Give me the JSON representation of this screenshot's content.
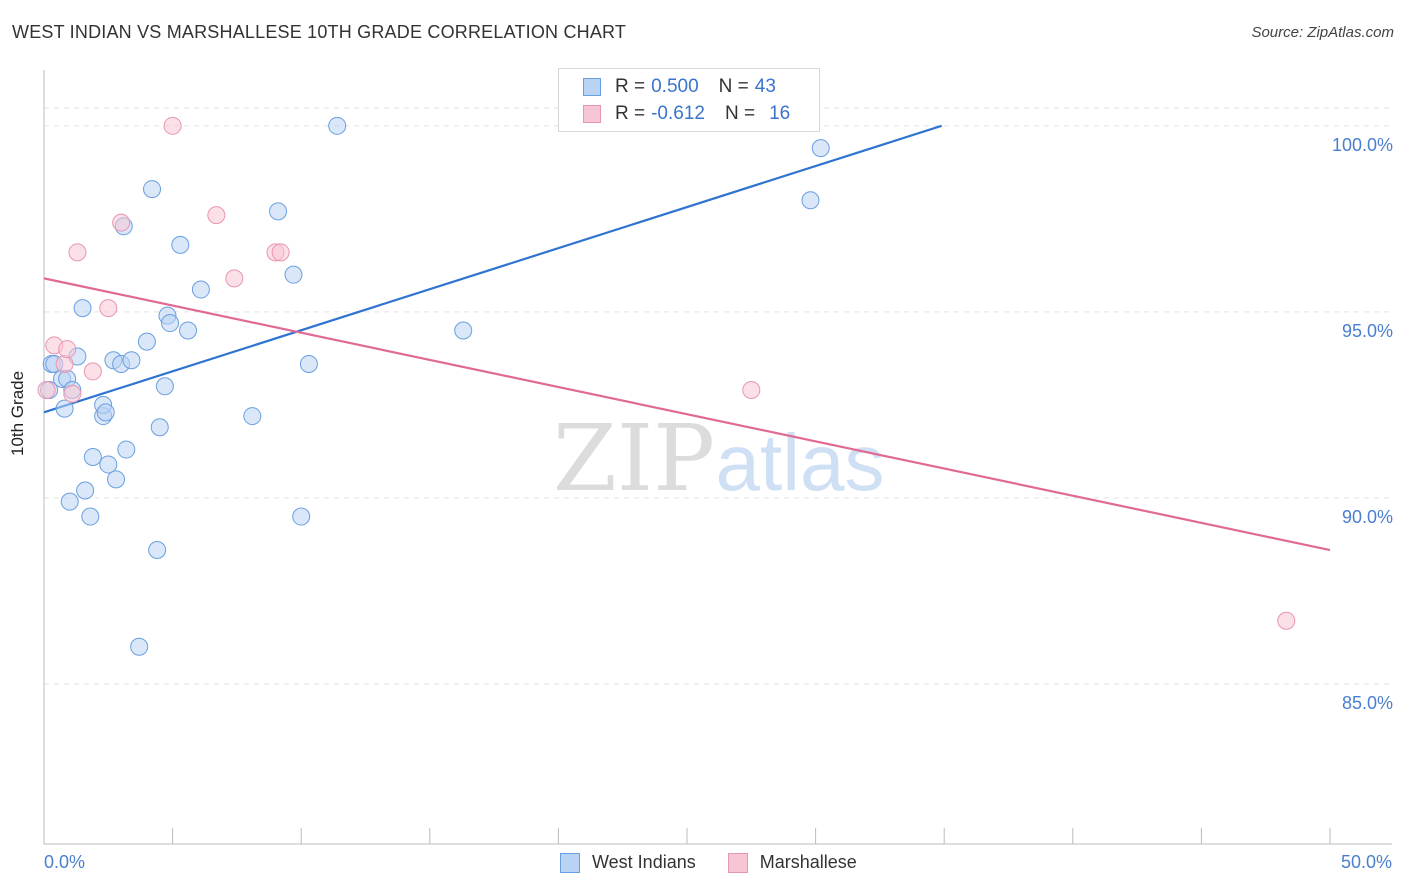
{
  "header": {
    "title": "WEST INDIAN VS MARSHALLESE 10TH GRADE CORRELATION CHART",
    "source": "Source: ZipAtlas.com"
  },
  "watermark": {
    "zip": "ZIP",
    "atlas": "atlas"
  },
  "legend_stats": [
    {
      "r_label": "R =",
      "r_value": "0.500",
      "n_label": "N =",
      "n_value": "43"
    },
    {
      "r_label": "R =",
      "r_value": "-0.612",
      "n_label": "N =",
      "n_value": "16"
    }
  ],
  "chart_data": {
    "type": "scatter",
    "title": "WEST INDIAN VS MARSHALLESE 10TH GRADE CORRELATION CHART",
    "xlabel": "",
    "ylabel": "10th Grade",
    "xlim": [
      0,
      50
    ],
    "ylim": [
      80.7,
      101.5
    ],
    "x_tick_labels": [
      "0.0%",
      "50.0%"
    ],
    "y_ticks": [
      85,
      90,
      95,
      100
    ],
    "y_tick_labels": [
      "85.0%",
      "90.0%",
      "95.0%",
      "100.0%"
    ],
    "grid": true,
    "legend_position": "bottom-center",
    "colors": {
      "west_indians_fill": "#b9d3f4",
      "west_indians_stroke": "#6a9fe0",
      "west_indians_line": "#2f74d0",
      "marshallese_fill": "#f7c6d4",
      "marshallese_stroke": "#e896b0",
      "marshallese_line": "#e06a94",
      "tick_label": "#4a7fd0"
    },
    "series": [
      {
        "name": "West Indians",
        "points": [
          [
            0.3,
            93.6
          ],
          [
            0.4,
            93.6
          ],
          [
            0.7,
            93.2
          ],
          [
            0.8,
            92.4
          ],
          [
            0.9,
            93.2
          ],
          [
            1.0,
            89.9
          ],
          [
            1.1,
            92.9
          ],
          [
            1.3,
            93.8
          ],
          [
            1.5,
            95.1
          ],
          [
            1.6,
            90.2
          ],
          [
            1.8,
            89.5
          ],
          [
            1.9,
            91.1
          ],
          [
            2.3,
            92.2
          ],
          [
            2.3,
            92.5
          ],
          [
            2.4,
            92.3
          ],
          [
            2.5,
            90.9
          ],
          [
            2.7,
            93.7
          ],
          [
            2.8,
            90.5
          ],
          [
            3.0,
            93.6
          ],
          [
            3.1,
            97.3
          ],
          [
            3.2,
            91.3
          ],
          [
            3.4,
            93.7
          ],
          [
            3.7,
            86.0
          ],
          [
            4.0,
            94.2
          ],
          [
            4.2,
            98.3
          ],
          [
            4.4,
            88.6
          ],
          [
            4.5,
            91.9
          ],
          [
            4.7,
            93.0
          ],
          [
            4.8,
            94.9
          ],
          [
            4.9,
            94.7
          ],
          [
            5.3,
            96.8
          ],
          [
            5.6,
            94.5
          ],
          [
            6.1,
            95.6
          ],
          [
            8.1,
            92.2
          ],
          [
            9.1,
            97.7
          ],
          [
            9.7,
            96.0
          ],
          [
            10.0,
            89.5
          ],
          [
            10.3,
            93.6
          ],
          [
            11.4,
            100.0
          ],
          [
            16.3,
            94.5
          ],
          [
            29.8,
            98.0
          ],
          [
            30.2,
            99.4
          ],
          [
            0.2,
            92.9
          ]
        ],
        "trend": {
          "x": [
            0,
            34.9
          ],
          "y": [
            92.3,
            100.0
          ]
        }
      },
      {
        "name": "Marshallese",
        "points": [
          [
            0.1,
            92.9
          ],
          [
            0.4,
            94.1
          ],
          [
            0.8,
            93.6
          ],
          [
            0.9,
            94.0
          ],
          [
            1.1,
            92.8
          ],
          [
            1.3,
            96.6
          ],
          [
            1.9,
            93.4
          ],
          [
            2.5,
            95.1
          ],
          [
            3.0,
            97.4
          ],
          [
            5.0,
            100.0
          ],
          [
            6.7,
            97.6
          ],
          [
            7.4,
            95.9
          ],
          [
            9.0,
            96.6
          ],
          [
            9.2,
            96.6
          ],
          [
            27.5,
            92.9
          ],
          [
            48.3,
            86.7
          ]
        ],
        "trend": {
          "x": [
            0,
            50
          ],
          "y": [
            95.9,
            88.6
          ]
        }
      }
    ]
  }
}
